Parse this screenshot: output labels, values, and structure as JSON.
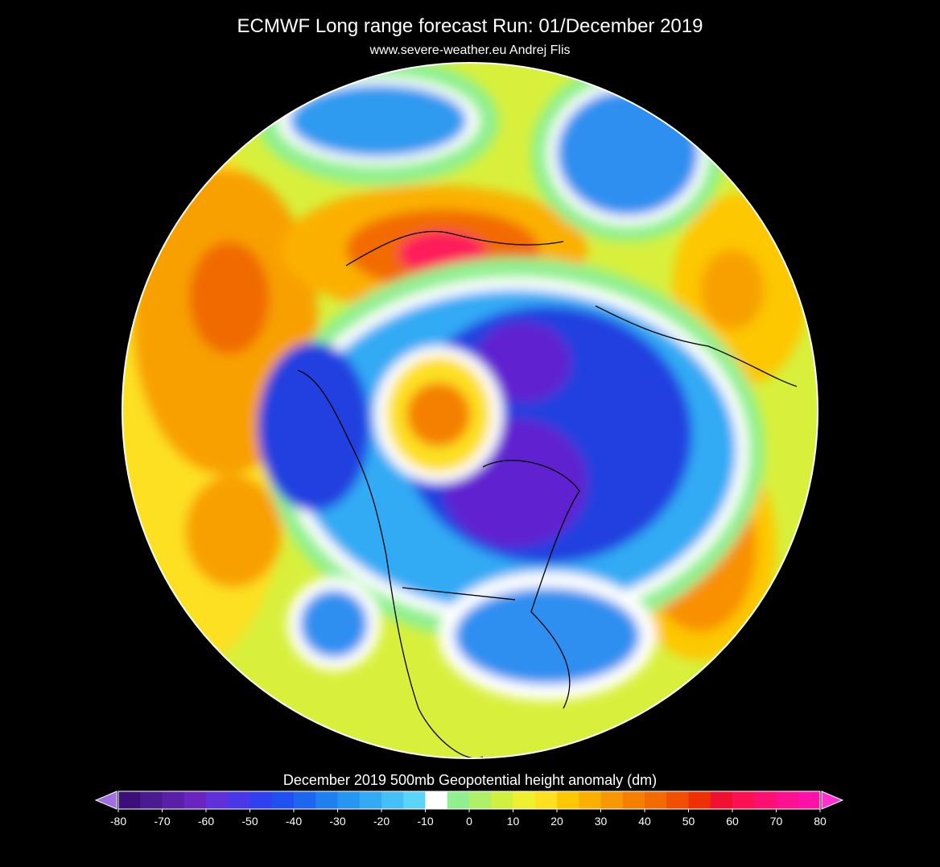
{
  "header": {
    "title": "ECMWF Long range forecast  Run: 01/December 2019",
    "subtitle": "www.severe-weather.eu   Andrej Flis"
  },
  "colorbar": {
    "label": "December 2019 500mb Geopotential height anomaly (dm)",
    "ticks": [
      -80,
      -70,
      -60,
      -50,
      -40,
      -30,
      -20,
      -10,
      0,
      10,
      20,
      30,
      40,
      50,
      60,
      70,
      80
    ],
    "colors": [
      "#3a1078",
      "#4a1a90",
      "#5a1fa8",
      "#6a24c0",
      "#6030d8",
      "#4a38e8",
      "#3040f0",
      "#2050f0",
      "#1d66f0",
      "#1f80f0",
      "#2596f2",
      "#33aaf4",
      "#45c0f6",
      "#5ad4f8",
      "#ffffff",
      "#90f090",
      "#b0f068",
      "#d0f040",
      "#eef030",
      "#fde020",
      "#fdc800",
      "#fbb000",
      "#f89800",
      "#f58000",
      "#f26a00",
      "#f05000",
      "#ee3000",
      "#f01030",
      "#ff1050",
      "#ff1070",
      "#ff1090",
      "#ff10a8"
    ],
    "under_color": "#a070e0",
    "over_color": "#ff30d0"
  }
}
